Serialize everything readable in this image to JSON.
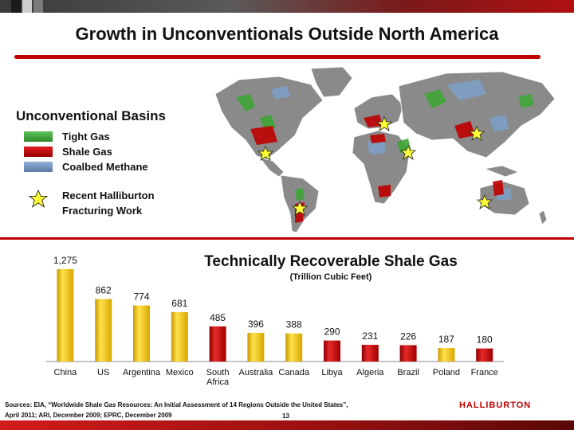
{
  "title": "Growth in Unconventionals Outside North America",
  "legend": {
    "title": "Unconventional Basins",
    "items": [
      {
        "label": "Tight Gas",
        "color": "#3fa535"
      },
      {
        "label": "Shale Gas",
        "color": "#c00000"
      },
      {
        "label": "Coalbed Methane",
        "color": "#6f8fb5"
      }
    ],
    "star_label_line1": "Recent Halliburton",
    "star_label_line2": "Fracturing Work",
    "star_color": "#ffff33"
  },
  "chart_data": {
    "type": "bar",
    "title": "Technically Recoverable Shale Gas",
    "subtitle": "(Trillion Cubic Feet)",
    "categories": [
      "China",
      "US",
      "Argentina",
      "Mexico",
      "South Africa",
      "Australia",
      "Canada",
      "Libya",
      "Algeria",
      "Brazil",
      "Poland",
      "France"
    ],
    "values": [
      1275,
      862,
      774,
      681,
      485,
      396,
      388,
      290,
      231,
      226,
      187,
      180
    ],
    "value_labels": [
      "1,275",
      "862",
      "774",
      "681",
      "485",
      "396",
      "388",
      "290",
      "231",
      "226",
      "187",
      "180"
    ],
    "bar_colors": [
      "#f2c200",
      "#f2c200",
      "#f2c200",
      "#f2c200",
      "#c00000",
      "#f2c200",
      "#f2c200",
      "#c00000",
      "#c00000",
      "#c00000",
      "#f2c200",
      "#c00000"
    ],
    "ylim": [
      0,
      1275
    ],
    "grid": false
  },
  "footer": {
    "sources_line1": "Sources: EIA, “Worldwide Shale Gas Resources: An Initial Assessment of 14 Regions Outside the United States”,",
    "sources_line2": "April 2011; ARI, December 2009; EPRC, December 2009",
    "page_number": "13",
    "logo": "HALLIBURTON"
  },
  "colors": {
    "accent_red": "#c00000",
    "bar_yellow": "#f2c200"
  }
}
